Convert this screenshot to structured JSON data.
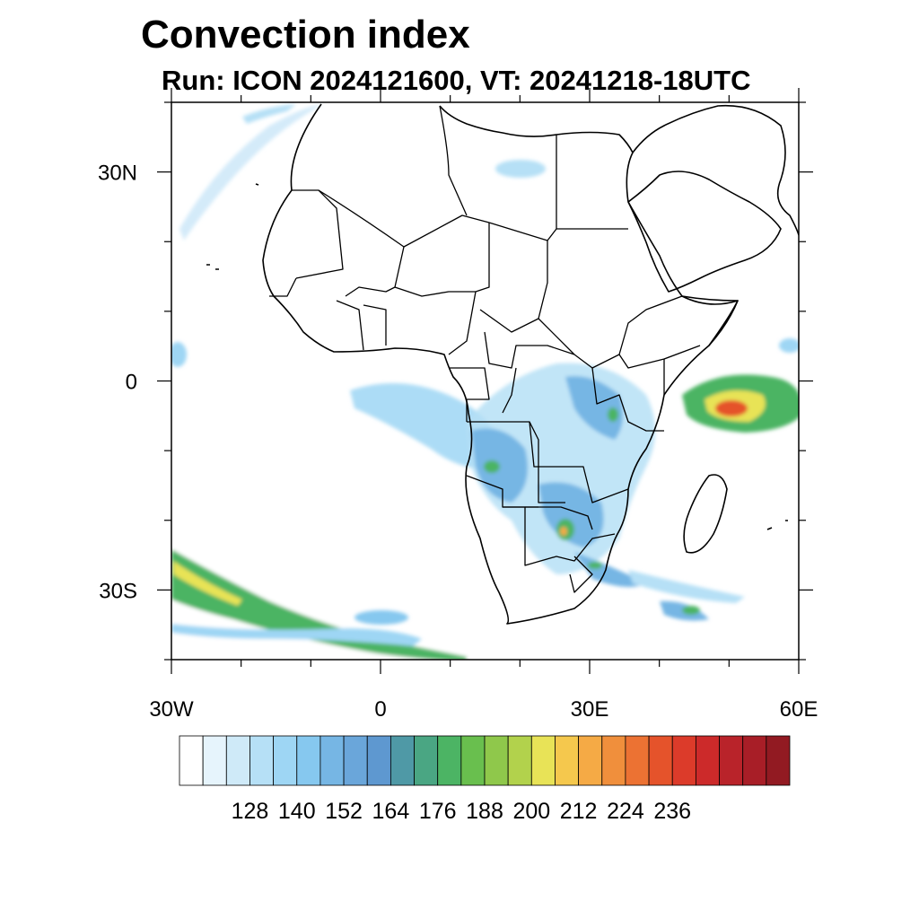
{
  "title": "Convection index",
  "subtitle": "Run: ICON 2024121600,  VT: 20241218-18UTC",
  "map": {
    "projection": "cylindrical equidistant",
    "lon_range": [
      -30,
      60
    ],
    "lat_range": [
      -40,
      40
    ],
    "lat_labels": [
      {
        "lat": 30,
        "text": "30N"
      },
      {
        "lat": 0,
        "text": "0"
      },
      {
        "lat": -30,
        "text": "30S"
      }
    ],
    "lon_labels": [
      {
        "lon": -30,
        "text": "30W"
      },
      {
        "lon": 0,
        "text": "0"
      },
      {
        "lon": 30,
        "text": "30E"
      },
      {
        "lon": 60,
        "text": "60E"
      }
    ],
    "coastline_color": "#000000",
    "ocean_color": "#ffffff"
  },
  "colorbar": {
    "labels": [
      "128",
      "140",
      "152",
      "164",
      "176",
      "188",
      "200",
      "212",
      "224",
      "236"
    ],
    "colors": [
      "#ffffff",
      "#e6f4fc",
      "#cfeaf8",
      "#b6e0f6",
      "#9ed6f4",
      "#86c8ef",
      "#76b6e4",
      "#6aa6da",
      "#5e98d0",
      "#4f99a6",
      "#4aa683",
      "#4cb464",
      "#69bf4e",
      "#8fc84b",
      "#b2d24c",
      "#e8e357",
      "#f5c84d",
      "#f5aa45",
      "#f08f3c",
      "#ec7233",
      "#e5532b",
      "#dc3b2a",
      "#cc2a2a",
      "#b9232a",
      "#a81e27",
      "#921a22"
    ]
  }
}
